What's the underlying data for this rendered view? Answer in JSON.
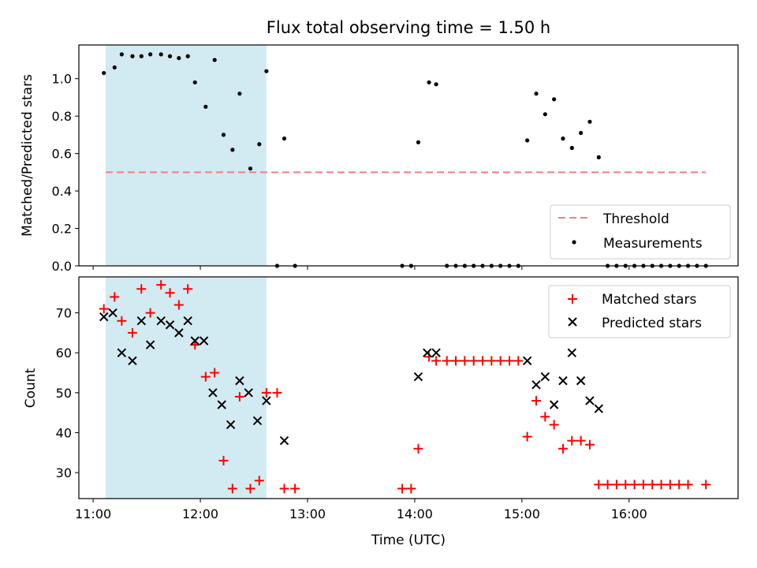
{
  "chart_data": [
    {
      "type": "scatter",
      "title": "Flux total observing time = 1.50 h",
      "xlabel": "",
      "ylabel": "Matched/Predicted stars",
      "ylim": [
        0.0,
        1.18
      ],
      "yticks": [
        0.0,
        0.2,
        0.4,
        0.6,
        0.8,
        1.0
      ],
      "xlim": [
        "10:52",
        "17:01"
      ],
      "x_unit": "HH:MM UTC",
      "shaded_region": {
        "start": "11:07",
        "end": "12:37",
        "color": "#add8e6"
      },
      "threshold": {
        "name": "Threshold",
        "value": 0.5,
        "start": "11:07",
        "end": "16:43",
        "color": "#f08080"
      },
      "series": [
        {
          "name": "Measurements",
          "marker": "dot",
          "color": "#000000",
          "points": [
            [
              "11:06",
              1.03
            ],
            [
              "11:12",
              1.06
            ],
            [
              "11:16",
              1.13
            ],
            [
              "11:22",
              1.12
            ],
            [
              "11:27",
              1.12
            ],
            [
              "11:32",
              1.13
            ],
            [
              "11:38",
              1.13
            ],
            [
              "11:43",
              1.12
            ],
            [
              "11:48",
              1.11
            ],
            [
              "11:53",
              1.12
            ],
            [
              "11:57",
              0.98
            ],
            [
              "12:03",
              0.85
            ],
            [
              "12:08",
              1.1
            ],
            [
              "12:13",
              0.7
            ],
            [
              "12:18",
              0.62
            ],
            [
              "12:22",
              0.92
            ],
            [
              "12:28",
              0.52
            ],
            [
              "12:33",
              0.65
            ],
            [
              "12:37",
              1.04
            ],
            [
              "12:43",
              0.0
            ],
            [
              "12:47",
              0.68
            ],
            [
              "12:53",
              0.0
            ],
            [
              "13:53",
              0.0
            ],
            [
              "13:58",
              0.0
            ],
            [
              "14:02",
              0.66
            ],
            [
              "14:08",
              0.98
            ],
            [
              "14:12",
              0.97
            ],
            [
              "14:18",
              0.0
            ],
            [
              "14:23",
              0.0
            ],
            [
              "14:28",
              0.0
            ],
            [
              "14:33",
              0.0
            ],
            [
              "14:38",
              0.0
            ],
            [
              "14:43",
              0.0
            ],
            [
              "14:48",
              0.0
            ],
            [
              "14:53",
              0.0
            ],
            [
              "14:58",
              0.0
            ],
            [
              "15:03",
              0.67
            ],
            [
              "15:08",
              0.92
            ],
            [
              "15:13",
              0.81
            ],
            [
              "15:18",
              0.89
            ],
            [
              "15:23",
              0.68
            ],
            [
              "15:28",
              0.63
            ],
            [
              "15:33",
              0.71
            ],
            [
              "15:38",
              0.77
            ],
            [
              "15:43",
              0.58
            ],
            [
              "15:48",
              0.0
            ],
            [
              "15:53",
              0.0
            ],
            [
              "15:58",
              0.0
            ],
            [
              "16:03",
              0.0
            ],
            [
              "16:08",
              0.0
            ],
            [
              "16:13",
              0.0
            ],
            [
              "16:18",
              0.0
            ],
            [
              "16:23",
              0.0
            ],
            [
              "16:28",
              0.0
            ],
            [
              "16:33",
              0.0
            ],
            [
              "16:38",
              0.0
            ],
            [
              "16:43",
              0.0
            ]
          ]
        }
      ],
      "legend": {
        "placement": "lower right",
        "entries": [
          "Threshold",
          "Measurements"
        ]
      },
      "grid": false
    },
    {
      "type": "scatter",
      "title": "",
      "xlabel": "Time (UTC)",
      "ylabel": "Count",
      "ylim": [
        23.5,
        79
      ],
      "yticks": [
        30,
        40,
        50,
        60,
        70
      ],
      "xlim": [
        "10:52",
        "17:01"
      ],
      "xticks": [
        "11:00",
        "12:00",
        "13:00",
        "14:00",
        "15:00",
        "16:00"
      ],
      "x_unit": "HH:MM UTC",
      "shaded_region": {
        "start": "11:07",
        "end": "12:37",
        "color": "#add8e6"
      },
      "series": [
        {
          "name": "Matched stars",
          "marker": "plus",
          "color": "#ff0000",
          "points": [
            [
              "11:06",
              71
            ],
            [
              "11:12",
              74
            ],
            [
              "11:16",
              68
            ],
            [
              "11:22",
              65
            ],
            [
              "11:27",
              76
            ],
            [
              "11:32",
              70
            ],
            [
              "11:38",
              77
            ],
            [
              "11:43",
              75
            ],
            [
              "11:48",
              72
            ],
            [
              "11:53",
              76
            ],
            [
              "11:57",
              62
            ],
            [
              "12:03",
              54
            ],
            [
              "12:08",
              55
            ],
            [
              "12:13",
              33
            ],
            [
              "12:18",
              26
            ],
            [
              "12:22",
              49
            ],
            [
              "12:28",
              26
            ],
            [
              "12:33",
              28
            ],
            [
              "12:37",
              50
            ],
            [
              "12:43",
              50
            ],
            [
              "12:47",
              26
            ],
            [
              "12:53",
              26
            ],
            [
              "13:53",
              26
            ],
            [
              "13:58",
              26
            ],
            [
              "14:02",
              36
            ],
            [
              "14:08",
              59
            ],
            [
              "14:12",
              58
            ],
            [
              "14:18",
              58
            ],
            [
              "14:23",
              58
            ],
            [
              "14:28",
              58
            ],
            [
              "14:33",
              58
            ],
            [
              "14:38",
              58
            ],
            [
              "14:43",
              58
            ],
            [
              "14:48",
              58
            ],
            [
              "14:53",
              58
            ],
            [
              "14:58",
              58
            ],
            [
              "15:03",
              39
            ],
            [
              "15:08",
              48
            ],
            [
              "15:13",
              44
            ],
            [
              "15:18",
              42
            ],
            [
              "15:23",
              36
            ],
            [
              "15:28",
              38
            ],
            [
              "15:33",
              38
            ],
            [
              "15:38",
              37
            ],
            [
              "15:43",
              27
            ],
            [
              "15:48",
              27
            ],
            [
              "15:53",
              27
            ],
            [
              "15:58",
              27
            ],
            [
              "16:03",
              27
            ],
            [
              "16:08",
              27
            ],
            [
              "16:13",
              27
            ],
            [
              "16:18",
              27
            ],
            [
              "16:23",
              27
            ],
            [
              "16:28",
              27
            ],
            [
              "16:33",
              27
            ],
            [
              "16:43",
              27
            ]
          ]
        },
        {
          "name": "Predicted stars",
          "marker": "x",
          "color": "#000000",
          "points": [
            [
              "11:06",
              69
            ],
            [
              "11:11",
              70
            ],
            [
              "11:16",
              60
            ],
            [
              "11:22",
              58
            ],
            [
              "11:27",
              68
            ],
            [
              "11:32",
              62
            ],
            [
              "11:38",
              68
            ],
            [
              "11:43",
              67
            ],
            [
              "11:48",
              65
            ],
            [
              "11:53",
              68
            ],
            [
              "11:57",
              63
            ],
            [
              "12:02",
              63
            ],
            [
              "12:07",
              50
            ],
            [
              "12:12",
              47
            ],
            [
              "12:17",
              42
            ],
            [
              "12:22",
              53
            ],
            [
              "12:27",
              50
            ],
            [
              "12:32",
              43
            ],
            [
              "12:37",
              48
            ],
            [
              "12:47",
              38
            ],
            [
              "14:02",
              54
            ],
            [
              "14:07",
              60
            ],
            [
              "14:12",
              60
            ],
            [
              "15:03",
              58
            ],
            [
              "15:08",
              52
            ],
            [
              "15:13",
              54
            ],
            [
              "15:18",
              47
            ],
            [
              "15:23",
              53
            ],
            [
              "15:28",
              60
            ],
            [
              "15:33",
              53
            ],
            [
              "15:38",
              48
            ],
            [
              "15:43",
              46
            ]
          ]
        }
      ],
      "legend": {
        "placement": "upper right",
        "entries": [
          "Matched stars",
          "Predicted stars"
        ]
      },
      "grid": false
    }
  ]
}
